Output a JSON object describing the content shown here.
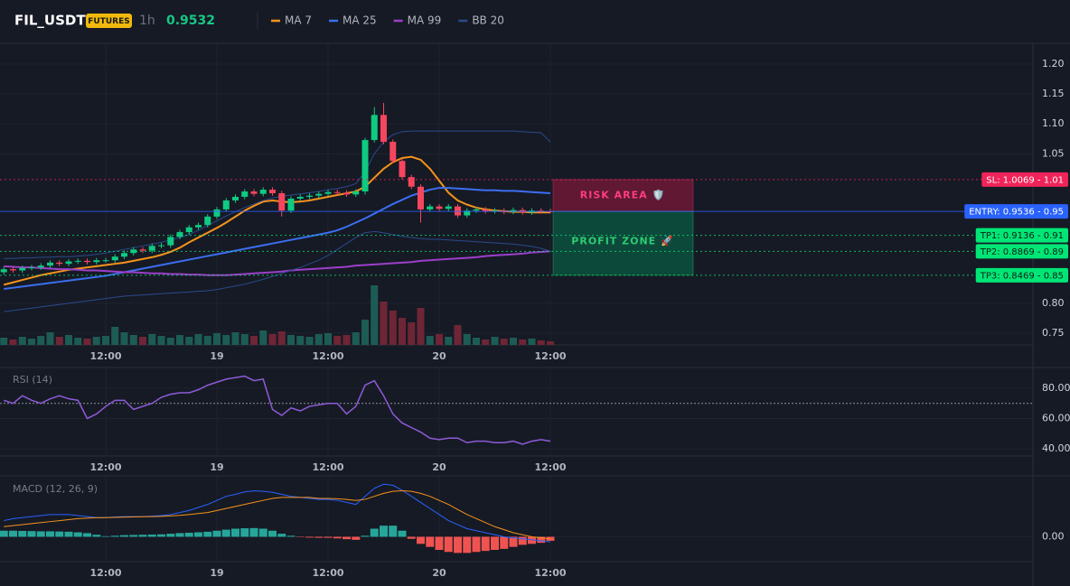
{
  "chart_data": [
    {
      "type": "candlestick",
      "title": "FIL_USDT",
      "badge": "FUTURES",
      "interval": "1h",
      "last_price": 0.9532,
      "categories": [
        null,
        null,
        null,
        null,
        null,
        null,
        null,
        null,
        null,
        null,
        null,
        "12:00",
        null,
        null,
        null,
        null,
        null,
        null,
        null,
        null,
        null,
        null,
        null,
        "19",
        null,
        null,
        null,
        null,
        null,
        null,
        null,
        null,
        null,
        null,
        null,
        "12:00",
        null,
        null,
        null,
        null,
        null,
        null,
        null,
        null,
        null,
        null,
        null,
        "20",
        null,
        null,
        null,
        null,
        null,
        null,
        null,
        null,
        null,
        null,
        null,
        "12:00"
      ],
      "open": [
        0.852,
        0.857,
        0.855,
        0.859,
        0.86,
        0.863,
        0.868,
        0.866,
        0.87,
        0.871,
        0.869,
        0.872,
        0.872,
        0.878,
        0.884,
        0.89,
        0.888,
        0.896,
        0.897,
        0.911,
        0.919,
        0.927,
        0.931,
        0.945,
        0.957,
        0.972,
        0.978,
        0.987,
        0.983,
        0.99,
        0.984,
        0.955,
        0.975,
        0.978,
        0.98,
        0.983,
        0.986,
        0.985,
        0.982,
        0.987,
        1.073,
        1.115,
        1.07,
        1.038,
        1.011,
        0.995,
        0.957,
        0.962,
        0.958,
        0.962,
        0.947,
        0.955,
        0.957,
        0.954,
        0.955,
        0.953,
        0.956,
        0.952,
        0.955,
        0.954
      ],
      "high": [
        0.861,
        0.861,
        0.863,
        0.864,
        0.867,
        0.872,
        0.872,
        0.874,
        0.875,
        0.875,
        0.876,
        0.876,
        0.882,
        0.888,
        0.894,
        0.894,
        0.9,
        0.901,
        0.915,
        0.923,
        0.931,
        0.935,
        0.949,
        0.961,
        0.976,
        0.982,
        0.991,
        0.991,
        0.994,
        0.994,
        0.988,
        0.979,
        0.982,
        0.984,
        0.987,
        0.99,
        0.99,
        0.989,
        0.991,
        1.077,
        1.128,
        1.135,
        1.074,
        1.042,
        1.015,
        0.999,
        0.966,
        0.966,
        0.966,
        0.966,
        0.959,
        0.961,
        0.961,
        0.959,
        0.959,
        0.96,
        0.96,
        0.959,
        0.959,
        0.958
      ],
      "low": [
        0.848,
        0.851,
        0.851,
        0.855,
        0.856,
        0.859,
        0.862,
        0.862,
        0.866,
        0.865,
        0.865,
        0.868,
        0.868,
        0.874,
        0.88,
        0.884,
        0.884,
        0.892,
        0.893,
        0.907,
        0.915,
        0.923,
        0.927,
        0.941,
        0.953,
        0.968,
        0.974,
        0.979,
        0.979,
        0.98,
        0.945,
        0.951,
        0.971,
        0.974,
        0.976,
        0.979,
        0.981,
        0.978,
        0.978,
        0.982,
        1.069,
        1.066,
        1.034,
        1.007,
        0.991,
        0.935,
        0.953,
        0.954,
        0.954,
        0.943,
        0.943,
        0.951,
        0.95,
        0.95,
        0.949,
        0.949,
        0.948,
        0.948,
        0.95,
        0.95
      ],
      "close": [
        0.857,
        0.855,
        0.859,
        0.86,
        0.863,
        0.868,
        0.866,
        0.87,
        0.871,
        0.869,
        0.872,
        0.872,
        0.878,
        0.884,
        0.89,
        0.888,
        0.896,
        0.897,
        0.911,
        0.919,
        0.927,
        0.931,
        0.945,
        0.957,
        0.972,
        0.978,
        0.987,
        0.983,
        0.99,
        0.984,
        0.955,
        0.975,
        0.978,
        0.98,
        0.983,
        0.986,
        0.985,
        0.982,
        0.987,
        1.073,
        1.115,
        1.07,
        1.038,
        1.011,
        0.995,
        0.957,
        0.962,
        0.958,
        0.962,
        0.947,
        0.955,
        0.957,
        0.954,
        0.955,
        0.953,
        0.956,
        0.952,
        0.955,
        0.954,
        0.9532
      ],
      "volume": [
        8,
        6,
        9,
        7,
        10,
        14,
        9,
        11,
        8,
        7,
        9,
        10,
        20,
        14,
        11,
        9,
        12,
        10,
        8,
        11,
        9,
        12,
        10,
        13,
        11,
        14,
        12,
        10,
        16,
        12,
        15,
        11,
        10,
        9,
        12,
        13,
        10,
        11,
        14,
        28,
        66,
        48,
        38,
        30,
        25,
        41,
        10,
        12,
        9,
        22,
        12,
        8,
        6,
        9,
        7,
        8,
        6,
        7,
        5,
        4
      ],
      "up_color": "#0ecb81",
      "down_color": "#f6465d",
      "volume_up_color": "#1d5c55",
      "volume_down_color": "#6e2535",
      "series": [
        {
          "name": "MA 7",
          "color": "#f7931a",
          "values": [
            0.831,
            0.835,
            0.839,
            0.843,
            0.847,
            0.85,
            0.853,
            0.856,
            0.858,
            0.86,
            0.862,
            0.864,
            0.866,
            0.868,
            0.871,
            0.874,
            0.877,
            0.881,
            0.886,
            0.893,
            0.902,
            0.91,
            0.918,
            0.926,
            0.935,
            0.945,
            0.955,
            0.963,
            0.97,
            0.972,
            0.97,
            0.969,
            0.97,
            0.972,
            0.975,
            0.978,
            0.981,
            0.984,
            0.987,
            0.995,
            1.01,
            1.025,
            1.036,
            1.043,
            1.045,
            1.04,
            1.025,
            1.005,
            0.985,
            0.972,
            0.965,
            0.96,
            0.957,
            0.955,
            0.954,
            0.953,
            0.953,
            0.952,
            0.952,
            0.952
          ]
        },
        {
          "name": "MA 25",
          "color": "#3b6ef0",
          "values": [
            0.824,
            0.826,
            0.828,
            0.83,
            0.832,
            0.834,
            0.836,
            0.838,
            0.84,
            0.842,
            0.844,
            0.846,
            0.849,
            0.852,
            0.855,
            0.858,
            0.861,
            0.864,
            0.867,
            0.87,
            0.873,
            0.876,
            0.879,
            0.882,
            0.885,
            0.888,
            0.891,
            0.894,
            0.897,
            0.9,
            0.903,
            0.906,
            0.909,
            0.912,
            0.915,
            0.918,
            0.922,
            0.928,
            0.935,
            0.942,
            0.95,
            0.958,
            0.966,
            0.973,
            0.98,
            0.985,
            0.99,
            0.993,
            0.993,
            0.992,
            0.991,
            0.99,
            0.989,
            0.989,
            0.988,
            0.988,
            0.987,
            0.986,
            0.985,
            0.984
          ]
        },
        {
          "name": "MA 99",
          "color": "#9c3fc9",
          "values": [
            0.862,
            0.861,
            0.86,
            0.86,
            0.859,
            0.858,
            0.857,
            0.857,
            0.856,
            0.855,
            0.855,
            0.854,
            0.853,
            0.852,
            0.852,
            0.851,
            0.85,
            0.85,
            0.849,
            0.849,
            0.848,
            0.848,
            0.847,
            0.847,
            0.847,
            0.848,
            0.849,
            0.85,
            0.851,
            0.852,
            0.853,
            0.855,
            0.856,
            0.857,
            0.858,
            0.859,
            0.86,
            0.861,
            0.863,
            0.864,
            0.865,
            0.866,
            0.867,
            0.868,
            0.869,
            0.871,
            0.872,
            0.873,
            0.874,
            0.875,
            0.876,
            0.877,
            0.879,
            0.88,
            0.881,
            0.882,
            0.883,
            0.885,
            0.886,
            0.887
          ]
        },
        {
          "name": "BB 20",
          "color": "#2a4a8c",
          "values": [
            0.875,
            0.875,
            0.876,
            0.876,
            0.877,
            0.877,
            0.878,
            0.878,
            0.879,
            0.88,
            0.882,
            0.884,
            0.887,
            0.89,
            0.893,
            0.896,
            0.899,
            0.902,
            0.906,
            0.91,
            0.915,
            0.922,
            0.93,
            0.938,
            0.946,
            0.953,
            0.96,
            0.966,
            0.972,
            0.976,
            0.979,
            0.981,
            0.983,
            0.985,
            0.987,
            0.99,
            0.992,
            0.995,
            1.0,
            1.02,
            1.05,
            1.07,
            1.082,
            1.087,
            1.088,
            1.088,
            1.088,
            1.088,
            1.088,
            1.088,
            1.088,
            1.088,
            1.088,
            1.088,
            1.088,
            1.088,
            1.087,
            1.086,
            1.085,
            1.07
          ],
          "lower": [
            0.786,
            0.788,
            0.79,
            0.792,
            0.794,
            0.796,
            0.798,
            0.8,
            0.802,
            0.804,
            0.806,
            0.808,
            0.81,
            0.812,
            0.813,
            0.814,
            0.815,
            0.816,
            0.817,
            0.818,
            0.819,
            0.82,
            0.821,
            0.823,
            0.826,
            0.829,
            0.832,
            0.836,
            0.84,
            0.845,
            0.85,
            0.855,
            0.86,
            0.866,
            0.872,
            0.88,
            0.89,
            0.9,
            0.91,
            0.918,
            0.92,
            0.918,
            0.915,
            0.912,
            0.91,
            0.908,
            0.907,
            0.907,
            0.906,
            0.905,
            0.904,
            0.903,
            0.902,
            0.901,
            0.9,
            0.899,
            0.897,
            0.895,
            0.892,
            0.887
          ]
        }
      ],
      "levels": [
        {
          "value": 1.0069,
          "label": "SL: 1.0069 - 1.01",
          "color": "#f0245a",
          "text_color": "#ffffff",
          "dashed": true
        },
        {
          "value": 0.9536,
          "label": "ENTRY: 0.9536 - 0.95",
          "color": "#2962ff",
          "text_color": "#ffffff",
          "dashed": false
        },
        {
          "value": 0.9136,
          "label": "TP1: 0.9136 - 0.91",
          "color": "#00e676",
          "text_color": "#0b1f14",
          "dashed": true
        },
        {
          "value": 0.8869,
          "label": "TP2: 0.8869 - 0.89",
          "color": "#00e676",
          "text_color": "#0b1f14",
          "dashed": true
        },
        {
          "value": 0.8469,
          "label": "TP3: 0.8469 - 0.85",
          "color": "#00e676",
          "text_color": "#0b1f14",
          "dashed": true
        }
      ],
      "zones": [
        {
          "label": "RISK AREA 🛡️",
          "color": "#7a1838",
          "text_color": "#ff3d7f"
        },
        {
          "label": "PROFIT ZONE 🚀",
          "color": "#0b5a43",
          "text_color": "#2ecc71"
        }
      ],
      "ylim": [
        0.7304,
        1.2347
      ],
      "yticks": [
        {
          "value": 1.2,
          "label": "1.20"
        },
        {
          "value": 1.15,
          "label": "1.15"
        },
        {
          "value": 1.1,
          "label": "1.10"
        },
        {
          "value": 1.05,
          "label": "1.05"
        },
        {
          "value": 0.8,
          "label": "0.80"
        },
        {
          "value": 0.75,
          "label": "0.75"
        }
      ],
      "grid": true
    },
    {
      "type": "line",
      "title": "RSI (14)",
      "color": "#8e5bd6",
      "categories": [
        null,
        null,
        null,
        null,
        null,
        null,
        null,
        null,
        null,
        null,
        null,
        "12:00",
        null,
        null,
        null,
        null,
        null,
        null,
        null,
        null,
        null,
        null,
        null,
        "19",
        null,
        null,
        null,
        null,
        null,
        null,
        null,
        null,
        null,
        null,
        null,
        "12:00",
        null,
        null,
        null,
        null,
        null,
        null,
        null,
        null,
        null,
        null,
        null,
        "20",
        null,
        null,
        null,
        null,
        null,
        null,
        null,
        null,
        null,
        null,
        null,
        "12:00"
      ],
      "values": [
        72,
        70,
        75,
        72,
        70,
        73,
        75,
        73,
        72,
        60,
        63,
        68,
        72,
        72,
        66,
        68,
        70,
        74,
        76,
        77,
        77,
        79,
        82,
        84,
        86,
        87,
        88,
        85,
        86,
        66,
        62,
        67,
        65,
        68,
        69,
        70,
        70,
        63,
        68,
        82,
        85,
        75,
        63,
        57,
        54,
        51,
        47,
        46,
        47,
        47,
        44,
        45,
        45,
        44,
        44,
        45,
        43,
        45,
        46,
        45
      ],
      "reference_line": 70,
      "ylim": [
        35.2,
        93.1
      ],
      "yticks": [
        {
          "value": 80,
          "label": "80.00"
        },
        {
          "value": 60,
          "label": "60.00"
        },
        {
          "value": 40,
          "label": "40.00"
        }
      ],
      "grid": true
    },
    {
      "type": "macd",
      "title": "MACD (12, 26, 9)",
      "categories": [
        null,
        null,
        null,
        null,
        null,
        null,
        null,
        null,
        null,
        null,
        null,
        "12:00",
        null,
        null,
        null,
        null,
        null,
        null,
        null,
        null,
        null,
        null,
        null,
        "19",
        null,
        null,
        null,
        null,
        null,
        null,
        null,
        null,
        null,
        null,
        null,
        "12:00",
        null,
        null,
        null,
        null,
        null,
        null,
        null,
        null,
        null,
        null,
        null,
        "20",
        null,
        null,
        null,
        null,
        null,
        null,
        null,
        null,
        null,
        null,
        null,
        "12:00"
      ],
      "macd_color": "#2962ff",
      "signal_color": "#f7931a",
      "histogram_up_color": "#26a69a",
      "histogram_down_color": "#ef5350",
      "macd": [
        0.008,
        0.009,
        0.0095,
        0.01,
        0.0105,
        0.011,
        0.011,
        0.011,
        0.0105,
        0.01,
        0.0095,
        0.0095,
        0.0098,
        0.01,
        0.01,
        0.01,
        0.0102,
        0.0105,
        0.011,
        0.012,
        0.013,
        0.0145,
        0.016,
        0.018,
        0.02,
        0.021,
        0.0222,
        0.0227,
        0.0225,
        0.022,
        0.021,
        0.02,
        0.0195,
        0.019,
        0.0185,
        0.0185,
        0.018,
        0.017,
        0.016,
        0.02,
        0.024,
        0.026,
        0.0255,
        0.023,
        0.02,
        0.017,
        0.014,
        0.011,
        0.008,
        0.006,
        0.004,
        0.003,
        0.002,
        0.001,
        0.0,
        -0.0005,
        -0.001,
        -0.0015,
        -0.002,
        -0.0025
      ],
      "signal": [
        0.005,
        0.0055,
        0.006,
        0.0065,
        0.007,
        0.0075,
        0.008,
        0.0085,
        0.009,
        0.0092,
        0.0094,
        0.0095,
        0.0096,
        0.0097,
        0.0098,
        0.0099,
        0.01,
        0.0101,
        0.0103,
        0.0106,
        0.011,
        0.0115,
        0.012,
        0.013,
        0.014,
        0.015,
        0.016,
        0.017,
        0.018,
        0.019,
        0.0195,
        0.0195,
        0.0195,
        0.0195,
        0.019,
        0.019,
        0.0188,
        0.0185,
        0.018,
        0.0185,
        0.02,
        0.0215,
        0.0225,
        0.0228,
        0.0225,
        0.0215,
        0.02,
        0.018,
        0.016,
        0.0135,
        0.011,
        0.009,
        0.007,
        0.005,
        0.0035,
        0.002,
        0.001,
        0.0,
        -0.0005,
        -0.001
      ],
      "histogram": [
        0.003,
        0.003,
        0.0029,
        0.0028,
        0.0027,
        0.0027,
        0.0026,
        0.0025,
        0.0022,
        0.0018,
        0.001,
        0.0003,
        0.0005,
        0.0008,
        0.0009,
        0.001,
        0.0011,
        0.0012,
        0.0015,
        0.0018,
        0.002,
        0.0022,
        0.0025,
        0.003,
        0.0035,
        0.004,
        0.0042,
        0.0043,
        0.004,
        0.003,
        0.0015,
        0.0005,
        -0.0002,
        -0.0004,
        -0.0005,
        -0.0005,
        -0.0008,
        -0.0012,
        -0.0015,
        0.0005,
        0.004,
        0.0055,
        0.0055,
        0.003,
        -0.001,
        -0.0035,
        -0.005,
        -0.0065,
        -0.0075,
        -0.008,
        -0.008,
        -0.0075,
        -0.007,
        -0.0065,
        -0.006,
        -0.005,
        -0.004,
        -0.0035,
        -0.003,
        -0.002
      ],
      "ylim": [
        -0.0123,
        0.0297
      ],
      "yticks": [
        {
          "value": 0,
          "label": "0.00"
        }
      ],
      "grid": true
    }
  ]
}
